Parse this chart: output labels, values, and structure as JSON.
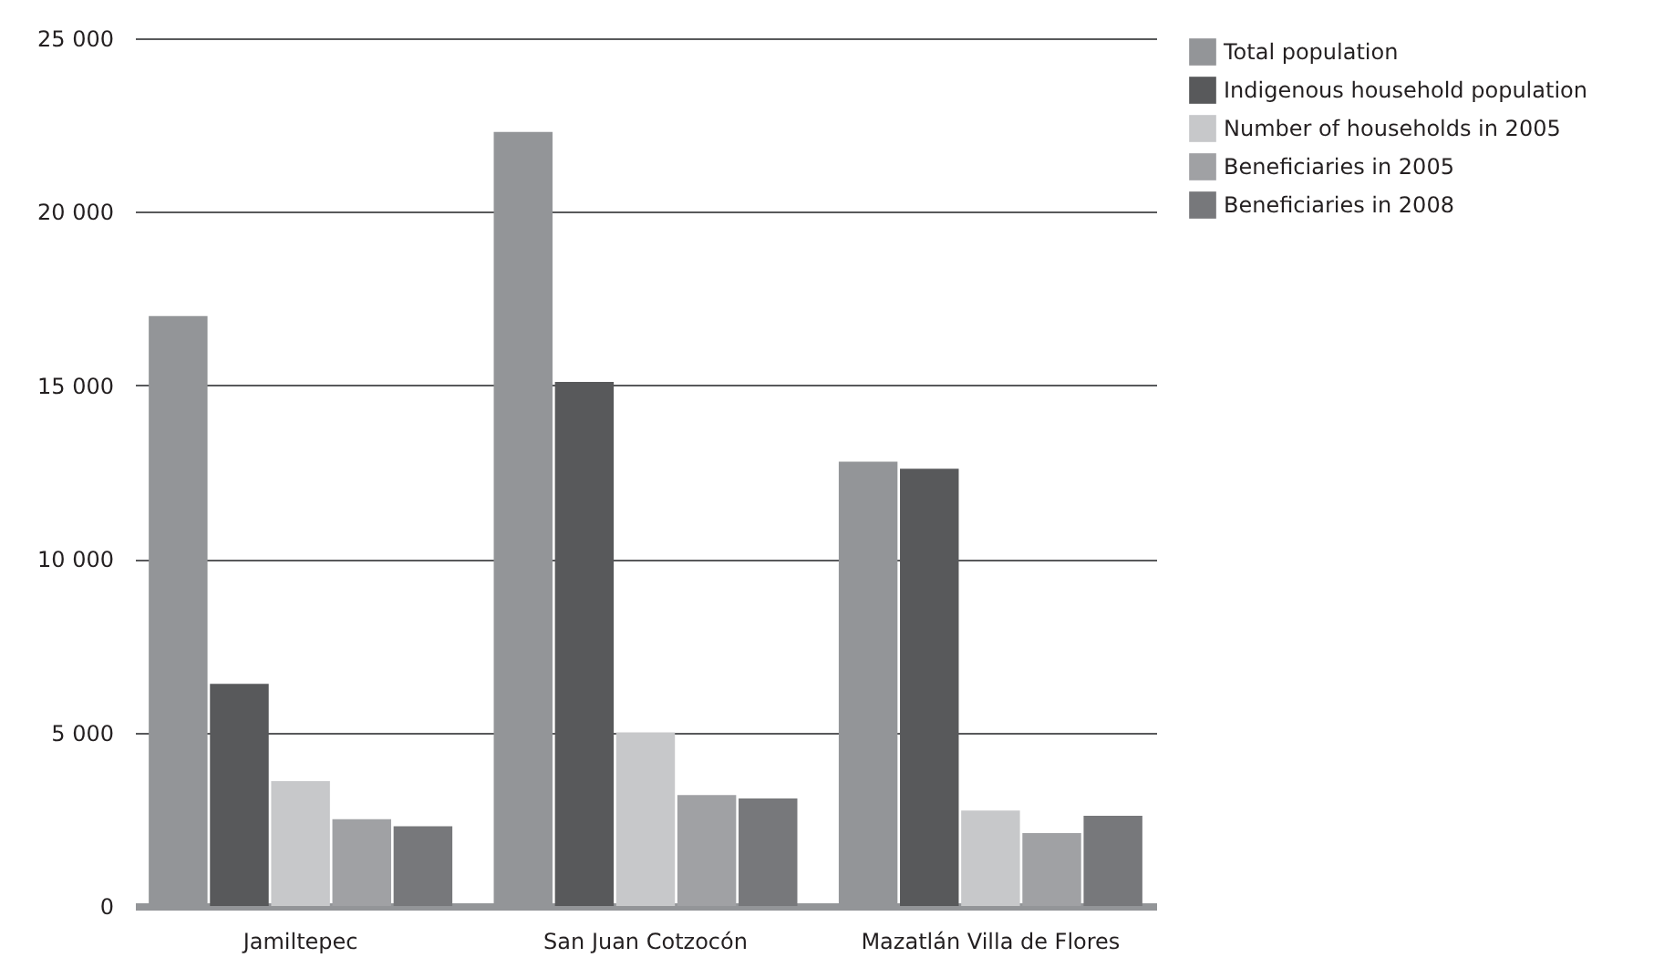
{
  "chart_data": {
    "type": "bar",
    "categories": [
      "Jamiltepec",
      "San Juan Cotzocón",
      "Mazatlán Villa de Flores"
    ],
    "series": [
      {
        "name": "Total population",
        "color": "#939598",
        "values": [
          17000,
          22300,
          12800
        ]
      },
      {
        "name": "Indigenous household population",
        "color": "#58595b",
        "values": [
          6400,
          15100,
          12600
        ]
      },
      {
        "name": "Number of households in 2005",
        "color": "#c7c8ca",
        "values": [
          3600,
          5000,
          2750
        ]
      },
      {
        "name": "Beneficiaries in 2005",
        "color": "#a0a1a4",
        "values": [
          2500,
          3200,
          2100
        ]
      },
      {
        "name": "Beneficiaries in 2008",
        "color": "#77787b",
        "values": [
          2300,
          3100,
          2600
        ]
      }
    ],
    "ylim": [
      0,
      25000
    ],
    "yticks": [
      {
        "value": 0,
        "label": "0"
      },
      {
        "value": 5000,
        "label": "5 000"
      },
      {
        "value": 10000,
        "label": "10 000"
      },
      {
        "value": 15000,
        "label": "15 000"
      },
      {
        "value": 20000,
        "label": "20 000"
      },
      {
        "value": 25000,
        "label": "25 000"
      }
    ],
    "grid": "y",
    "legend": "right"
  }
}
